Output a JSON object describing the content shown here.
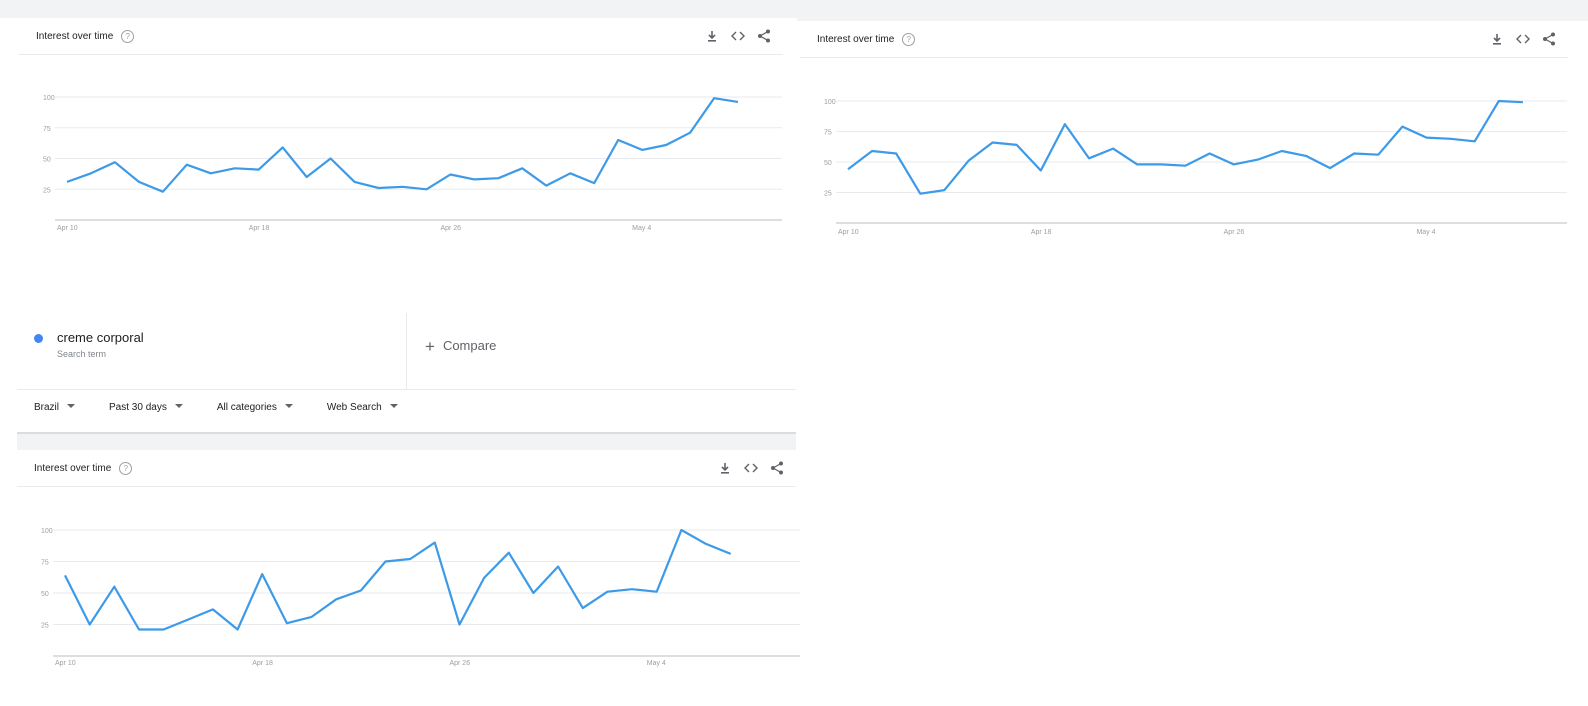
{
  "colors": {
    "series": "#3d9ae8",
    "grid": "#e8eaed",
    "axis": "#bdbdbd",
    "tick": "#9e9e9e",
    "accent_dot": "#4285f4"
  },
  "icons": [
    "download-icon",
    "embed-icon",
    "share-icon",
    "help-icon",
    "chevron-down-icon",
    "plus-icon"
  ],
  "search_term": {
    "name": "creme corporal",
    "type": "Search term"
  },
  "compare": {
    "plus": "+",
    "label": "Compare"
  },
  "filters": [
    {
      "label": "Brazil"
    },
    {
      "label": "Past 30 days"
    },
    {
      "label": "All categories"
    },
    {
      "label": "Web Search"
    }
  ],
  "help_glyph": "?",
  "cards": [
    {
      "title": "Interest over time"
    },
    {
      "title": "Interest over time"
    },
    {
      "title": "Interest over time"
    }
  ],
  "chart_data": [
    {
      "type": "line",
      "title": "Interest over time",
      "x": [
        "Apr 10",
        "Apr 11",
        "Apr 12",
        "Apr 13",
        "Apr 14",
        "Apr 15",
        "Apr 16",
        "Apr 17",
        "Apr 18",
        "Apr 19",
        "Apr 20",
        "Apr 21",
        "Apr 22",
        "Apr 23",
        "Apr 24",
        "Apr 25",
        "Apr 26",
        "Apr 27",
        "Apr 28",
        "Apr 29",
        "Apr 30",
        "May 1",
        "May 2",
        "May 3",
        "May 4",
        "May 5",
        "May 6",
        "May 7",
        "May 8",
        "May 9"
      ],
      "series": [
        {
          "values": [
            31,
            38,
            47,
            31,
            23,
            45,
            38,
            42,
            41,
            59,
            35,
            50,
            31,
            26,
            27,
            25,
            37,
            33,
            34,
            42,
            28,
            38,
            30,
            65,
            57,
            61,
            71,
            99,
            96,
            null
          ]
        }
      ],
      "x_tick_labels": [
        "Apr 10",
        "Apr 18",
        "Apr 26",
        "May 4"
      ],
      "y_tick_labels": [
        "100",
        "75",
        "50",
        "25"
      ],
      "ylim": [
        0,
        100
      ],
      "grid": true
    },
    {
      "type": "line",
      "title": "Interest over time",
      "x": [
        "Apr 10",
        "Apr 11",
        "Apr 12",
        "Apr 13",
        "Apr 14",
        "Apr 15",
        "Apr 16",
        "Apr 17",
        "Apr 18",
        "Apr 19",
        "Apr 20",
        "Apr 21",
        "Apr 22",
        "Apr 23",
        "Apr 24",
        "Apr 25",
        "Apr 26",
        "Apr 27",
        "Apr 28",
        "Apr 29",
        "Apr 30",
        "May 1",
        "May 2",
        "May 3",
        "May 4",
        "May 5",
        "May 6",
        "May 7",
        "May 8",
        "May 9"
      ],
      "series": [
        {
          "values": [
            44,
            59,
            57,
            24,
            27,
            51,
            66,
            64,
            43,
            81,
            53,
            61,
            48,
            48,
            47,
            57,
            48,
            52,
            59,
            55,
            45,
            57,
            56,
            79,
            70,
            69,
            67,
            100,
            99,
            null
          ]
        }
      ],
      "x_tick_labels": [
        "Apr 10",
        "Apr 18",
        "Apr 26",
        "May 4"
      ],
      "y_tick_labels": [
        "100",
        "75",
        "50",
        "25"
      ],
      "ylim": [
        0,
        100
      ],
      "grid": true
    },
    {
      "type": "line",
      "title": "Interest over time",
      "x": [
        "Apr 10",
        "Apr 11",
        "Apr 12",
        "Apr 13",
        "Apr 14",
        "Apr 15",
        "Apr 16",
        "Apr 17",
        "Apr 18",
        "Apr 19",
        "Apr 20",
        "Apr 21",
        "Apr 22",
        "Apr 23",
        "Apr 24",
        "Apr 25",
        "Apr 26",
        "Apr 27",
        "Apr 28",
        "Apr 29",
        "Apr 30",
        "May 1",
        "May 2",
        "May 3",
        "May 4",
        "May 5",
        "May 6",
        "May 7",
        "May 8",
        "May 9"
      ],
      "series": [
        {
          "values": [
            64,
            25,
            55,
            21,
            21,
            29,
            37,
            21,
            65,
            26,
            31,
            45,
            52,
            75,
            77,
            90,
            25,
            62,
            82,
            50,
            71,
            38,
            51,
            53,
            51,
            100,
            89,
            81,
            null,
            null
          ]
        }
      ],
      "x_tick_labels": [
        "Apr 10",
        "Apr 18",
        "Apr 26",
        "May 4"
      ],
      "y_tick_labels": [
        "100",
        "75",
        "50",
        "25"
      ],
      "ylim": [
        0,
        100
      ],
      "grid": true
    }
  ]
}
